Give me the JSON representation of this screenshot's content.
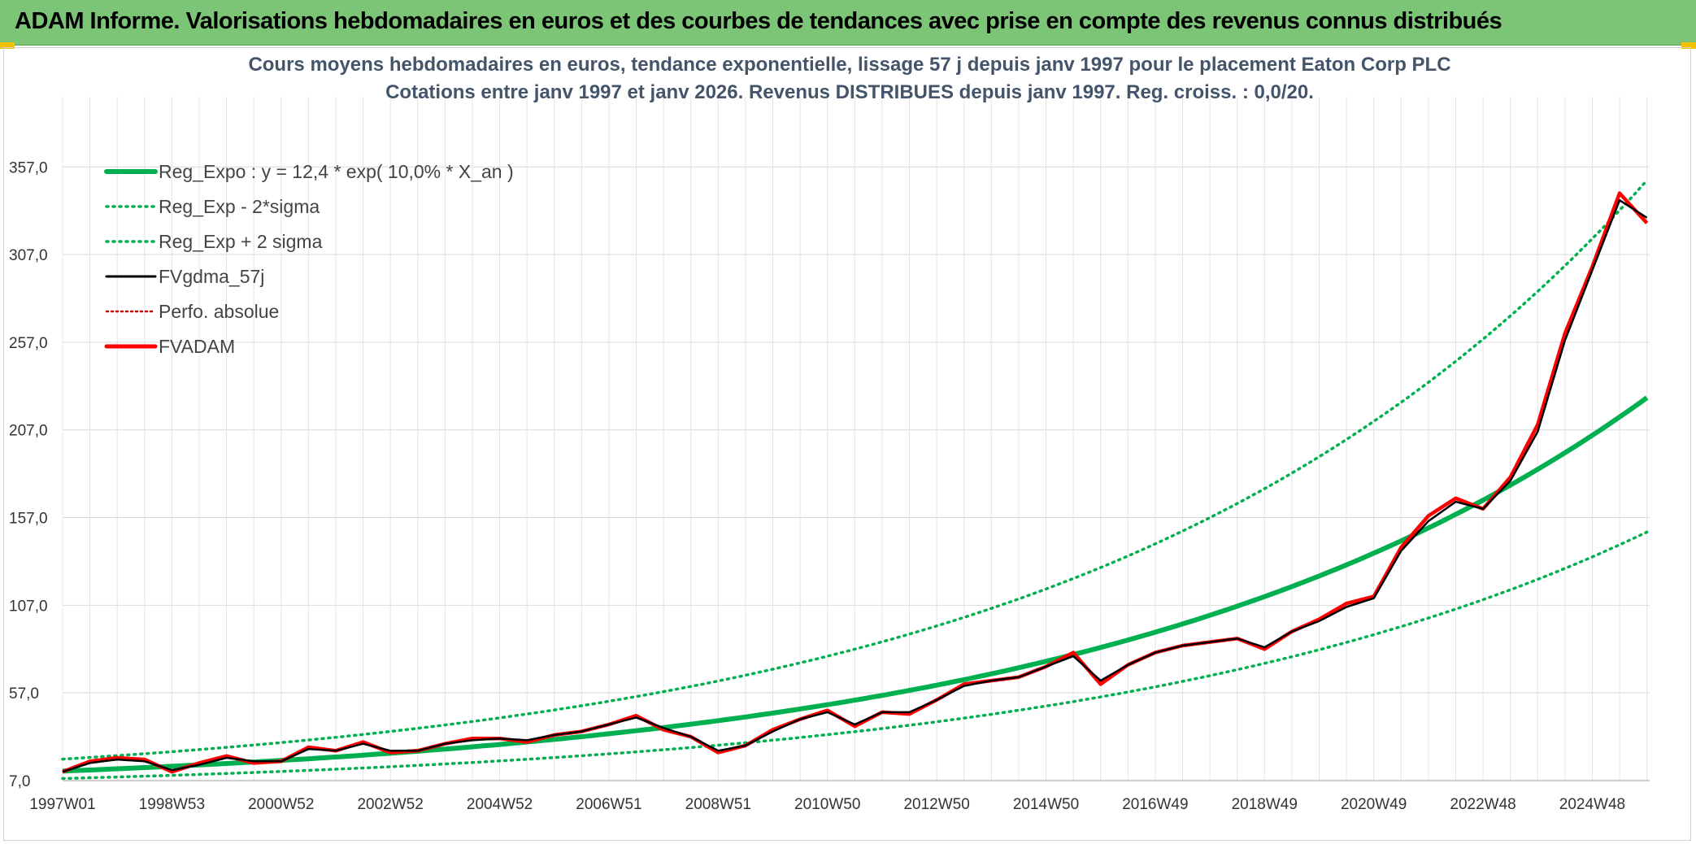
{
  "banner": {
    "title": "ADAM Informe. Valorisations hebdomadaires en euros et des courbes de tendances avec prise en compte des revenus connus distribués"
  },
  "colors": {
    "banner_bg": "#7cc576",
    "trend": "#00b050",
    "smooth": "#000000",
    "price": "#ff0000",
    "perfo": "#c00000"
  },
  "chart_data": {
    "type": "line",
    "title_lines": [
      "Cours moyens hebdomadaires en euros, tendance exponentielle, lissage 57 j depuis janv 1997 pour le placement Eaton Corp PLC",
      "Cotations entre janv 1997 et janv 2026. Revenus DISTRIBUES depuis janv 1997. Reg. croiss. : 0,0/20."
    ],
    "x_range": [
      1997.0,
      2026.05
    ],
    "y_range": [
      7.0,
      397.0
    ],
    "y_ticks": [
      7.0,
      57.0,
      107.0,
      157.0,
      207.0,
      257.0,
      307.0,
      357.0
    ],
    "y_tick_labels": [
      "7,0",
      "57,0",
      "107,0",
      "157,0",
      "207,0",
      "257,0",
      "307,0",
      "357,0"
    ],
    "x_ticks": [
      {
        "label": "1997W01",
        "t": 1997.0
      },
      {
        "label": "1998W53",
        "t": 1999.0
      },
      {
        "label": "2000W52",
        "t": 2001.0
      },
      {
        "label": "2002W52",
        "t": 2003.0
      },
      {
        "label": "2004W52",
        "t": 2005.0
      },
      {
        "label": "2006W51",
        "t": 2007.0
      },
      {
        "label": "2008W51",
        "t": 2009.0
      },
      {
        "label": "2010W50",
        "t": 2011.0
      },
      {
        "label": "2012W50",
        "t": 2013.0
      },
      {
        "label": "2014W50",
        "t": 2015.0
      },
      {
        "label": "2016W49",
        "t": 2017.0
      },
      {
        "label": "2018W49",
        "t": 2019.0
      },
      {
        "label": "2020W49",
        "t": 2021.0
      },
      {
        "label": "2022W48",
        "t": 2023.0
      },
      {
        "label": "2024W48",
        "t": 2025.0
      }
    ],
    "grid": true,
    "legend_position": "top-left",
    "regression": {
      "a": 12.4,
      "rate": 0.1,
      "lower_factor": 0.66,
      "upper_factor": 1.55
    },
    "legend": [
      {
        "label": "Reg_Expo : y = 12,4 * exp( 10,0% *  X_an )",
        "style": "solid-thick-green"
      },
      {
        "label": "Reg_Exp - 2*sigma",
        "style": "dotted-green"
      },
      {
        "label": "Reg_Exp + 2 sigma",
        "style": "dotted-green"
      },
      {
        "label": "FVgdma_57j",
        "style": "solid-black"
      },
      {
        "label": "Perfo. absolue",
        "style": "dotted-darkred"
      },
      {
        "label": "FVADAM",
        "style": "solid-thick-red"
      }
    ],
    "series": [
      {
        "name": "FVADAM",
        "points": [
          [
            1997.0,
            12.0
          ],
          [
            1997.5,
            18.0
          ],
          [
            1998.0,
            20.0
          ],
          [
            1998.5,
            19.0
          ],
          [
            1999.0,
            12.0
          ],
          [
            1999.5,
            17.0
          ],
          [
            2000.0,
            21.0
          ],
          [
            2000.5,
            17.0
          ],
          [
            2001.0,
            18.0
          ],
          [
            2001.5,
            26.0
          ],
          [
            2002.0,
            24.0
          ],
          [
            2002.5,
            29.0
          ],
          [
            2003.0,
            23.0
          ],
          [
            2003.5,
            24.0
          ],
          [
            2004.0,
            28.0
          ],
          [
            2004.5,
            31.0
          ],
          [
            2005.0,
            31.0
          ],
          [
            2005.5,
            29.0
          ],
          [
            2006.0,
            33.0
          ],
          [
            2006.5,
            35.0
          ],
          [
            2007.0,
            39.0
          ],
          [
            2007.5,
            44.0
          ],
          [
            2008.0,
            36.0
          ],
          [
            2008.5,
            32.0
          ],
          [
            2009.0,
            23.0
          ],
          [
            2009.5,
            27.0
          ],
          [
            2010.0,
            36.0
          ],
          [
            2010.5,
            42.0
          ],
          [
            2011.0,
            47.0
          ],
          [
            2011.5,
            38.0
          ],
          [
            2012.0,
            46.0
          ],
          [
            2012.5,
            45.0
          ],
          [
            2013.0,
            53.0
          ],
          [
            2013.5,
            62.0
          ],
          [
            2014.0,
            64.0
          ],
          [
            2014.5,
            66.0
          ],
          [
            2015.0,
            72.0
          ],
          [
            2015.5,
            80.0
          ],
          [
            2016.0,
            62.0
          ],
          [
            2016.5,
            73.0
          ],
          [
            2017.0,
            80.0
          ],
          [
            2017.5,
            84.0
          ],
          [
            2018.0,
            86.0
          ],
          [
            2018.5,
            88.0
          ],
          [
            2019.0,
            82.0
          ],
          [
            2019.5,
            92.0
          ],
          [
            2020.0,
            99.0
          ],
          [
            2020.5,
            108.0
          ],
          [
            2021.0,
            112.0
          ],
          [
            2021.5,
            140.0
          ],
          [
            2022.0,
            158.0
          ],
          [
            2022.5,
            168.0
          ],
          [
            2023.0,
            162.0
          ],
          [
            2023.5,
            180.0
          ],
          [
            2024.0,
            210.0
          ],
          [
            2024.5,
            262.0
          ],
          [
            2025.0,
            300.0
          ],
          [
            2025.5,
            342.0
          ],
          [
            2026.0,
            325.0
          ]
        ]
      },
      {
        "name": "FVgdma_57j",
        "points": [
          [
            1997.0,
            12.0
          ],
          [
            1997.5,
            17.0
          ],
          [
            1998.0,
            19.0
          ],
          [
            1998.5,
            18.0
          ],
          [
            1999.0,
            13.0
          ],
          [
            1999.5,
            16.0
          ],
          [
            2000.0,
            20.0
          ],
          [
            2000.5,
            18.0
          ],
          [
            2001.0,
            18.0
          ],
          [
            2001.5,
            25.0
          ],
          [
            2002.0,
            24.0
          ],
          [
            2002.5,
            28.0
          ],
          [
            2003.0,
            24.0
          ],
          [
            2003.5,
            24.0
          ],
          [
            2004.0,
            28.0
          ],
          [
            2004.5,
            30.0
          ],
          [
            2005.0,
            31.0
          ],
          [
            2005.5,
            30.0
          ],
          [
            2006.0,
            33.0
          ],
          [
            2006.5,
            35.0
          ],
          [
            2007.0,
            39.0
          ],
          [
            2007.5,
            43.0
          ],
          [
            2008.0,
            37.0
          ],
          [
            2008.5,
            32.0
          ],
          [
            2009.0,
            24.0
          ],
          [
            2009.5,
            27.0
          ],
          [
            2010.0,
            35.0
          ],
          [
            2010.5,
            42.0
          ],
          [
            2011.0,
            46.0
          ],
          [
            2011.5,
            39.0
          ],
          [
            2012.0,
            46.0
          ],
          [
            2012.5,
            46.0
          ],
          [
            2013.0,
            53.0
          ],
          [
            2013.5,
            61.0
          ],
          [
            2014.0,
            64.0
          ],
          [
            2014.5,
            66.0
          ],
          [
            2015.0,
            72.0
          ],
          [
            2015.5,
            78.0
          ],
          [
            2016.0,
            64.0
          ],
          [
            2016.5,
            73.0
          ],
          [
            2017.0,
            80.0
          ],
          [
            2017.5,
            84.0
          ],
          [
            2018.0,
            86.0
          ],
          [
            2018.5,
            88.0
          ],
          [
            2019.0,
            83.0
          ],
          [
            2019.5,
            92.0
          ],
          [
            2020.0,
            98.0
          ],
          [
            2020.5,
            106.0
          ],
          [
            2021.0,
            111.0
          ],
          [
            2021.5,
            138.0
          ],
          [
            2022.0,
            155.0
          ],
          [
            2022.5,
            166.0
          ],
          [
            2023.0,
            162.0
          ],
          [
            2023.5,
            178.0
          ],
          [
            2024.0,
            206.0
          ],
          [
            2024.5,
            258.0
          ],
          [
            2025.0,
            298.0
          ],
          [
            2025.5,
            338.0
          ],
          [
            2026.0,
            328.0
          ]
        ]
      }
    ]
  }
}
